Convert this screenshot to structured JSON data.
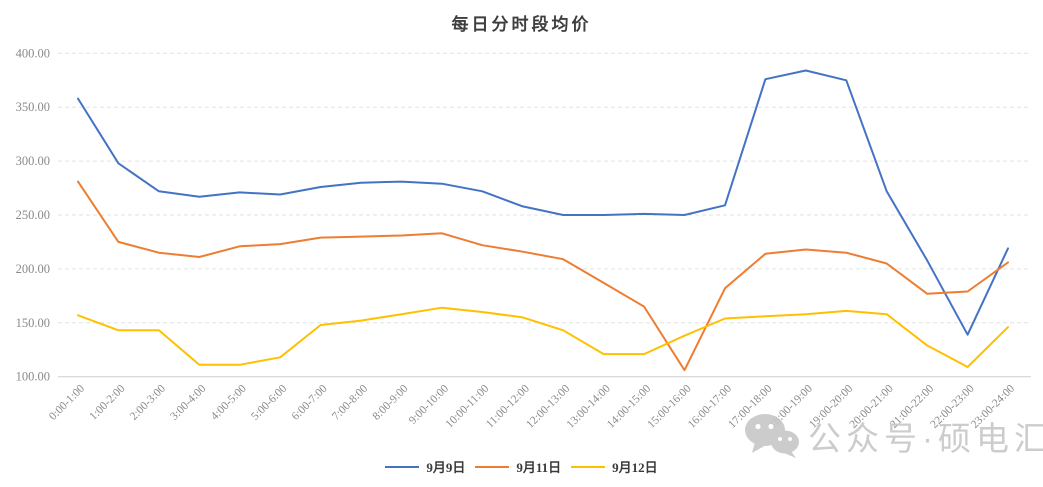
{
  "title": "每日分时段均价",
  "watermark": {
    "icon": "wechat-icon",
    "text": "公众号·硕电汇"
  },
  "chart_data": {
    "type": "line",
    "title": "每日分时段均价",
    "categories": [
      "0:00-1:00",
      "1:00-2:00",
      "2:00-3:00",
      "3:00-4:00",
      "4:00-5:00",
      "5:00-6:00",
      "6:00-7:00",
      "7:00-8:00",
      "8:00-9:00",
      "9:00-10:00",
      "10:00-11:00",
      "11:00-12:00",
      "12:00-13:00",
      "13:00-14:00",
      "14:00-15:00",
      "15:00-16:00",
      "16:00-17:00",
      "17:00-18:00",
      "18:00-19:00",
      "19:00-20:00",
      "20:00-21:00",
      "21:00-22:00",
      "22:00-23:00",
      "23:00-24:00"
    ],
    "series": [
      {
        "name": "9月9日",
        "color": "#4472C4",
        "values": [
          358,
          298,
          272,
          267,
          271,
          269,
          276,
          280,
          281,
          279,
          272,
          258,
          250,
          250,
          251,
          250,
          259,
          376,
          384,
          375,
          272,
          208,
          139,
          219
        ]
      },
      {
        "name": "9月11日",
        "color": "#ED7D31",
        "values": [
          281,
          225,
          215,
          211,
          221,
          223,
          229,
          230,
          231,
          233,
          222,
          216,
          209,
          187,
          165,
          106,
          182,
          214,
          218,
          215,
          205,
          177,
          179,
          206
        ]
      },
      {
        "name": "9月12日",
        "color": "#FFC000",
        "values": [
          157,
          143,
          143,
          111,
          111,
          118,
          148,
          152,
          158,
          164,
          160,
          155,
          143,
          121,
          121,
          138,
          154,
          156,
          158,
          161,
          158,
          129,
          109,
          146
        ]
      }
    ],
    "ylim": [
      100,
      400
    ],
    "yticks": [
      "400.00",
      "350.00",
      "300.00",
      "250.00",
      "200.00",
      "150.00",
      "100.00"
    ],
    "xlabel": "",
    "ylabel": "",
    "grid": true,
    "legend_position": "bottom"
  }
}
